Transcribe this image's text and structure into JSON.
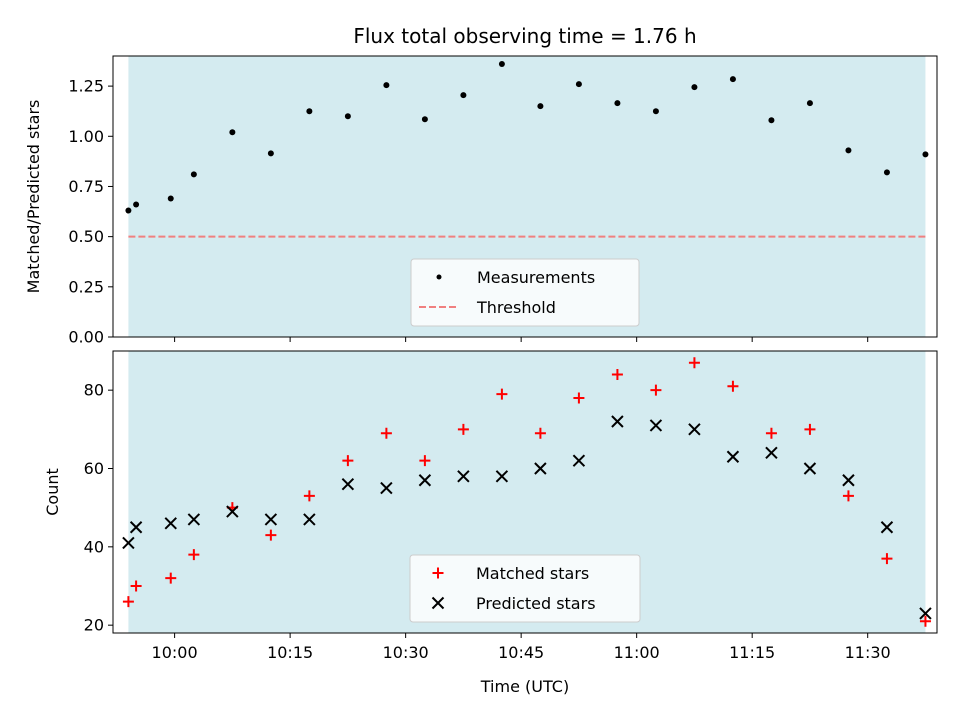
{
  "chart_data": [
    {
      "type": "scatter",
      "title": "Flux total observing time = 1.76 h",
      "xlabel": "",
      "ylabel": "Matched/Predicted stars",
      "xlim": [
        "09:52",
        "11:39"
      ],
      "ylim": [
        0,
        1.4
      ],
      "yticks": [
        0,
        0.25,
        0.5,
        0.75,
        1.0,
        1.25
      ],
      "ytick_labels": [
        "0.00",
        "0.25",
        "0.50",
        "0.75",
        "1.00",
        "1.25"
      ],
      "shaded_span": [
        "09:54",
        "11:37.5"
      ],
      "shaded_color": "#d4ebf0",
      "threshold": {
        "name": "Threshold",
        "value": 0.5,
        "color": "#f08080",
        "style": "dashed"
      },
      "legend": {
        "placement": "lower-center",
        "entries": [
          "Measurements",
          "Threshold"
        ]
      },
      "series": [
        {
          "name": "Measurements",
          "color": "#000000",
          "marker": "dot",
          "x": [
            "09:54",
            "09:55",
            "09:59.5",
            "10:02.5",
            "10:07.5",
            "10:12.5",
            "10:17.5",
            "10:22.5",
            "10:27.5",
            "10:32.5",
            "10:37.5",
            "10:42.5",
            "10:47.5",
            "10:52.5",
            "10:57.5",
            "11:02.5",
            "11:07.5",
            "11:12.5",
            "11:17.5",
            "11:22.5",
            "11:27.5",
            "11:32.5",
            "11:37.5"
          ],
          "y": [
            0.63,
            0.66,
            0.69,
            0.81,
            1.02,
            0.915,
            1.125,
            1.1,
            1.255,
            1.085,
            1.205,
            1.36,
            1.15,
            1.26,
            1.165,
            1.125,
            1.245,
            1.285,
            1.08,
            1.165,
            0.93,
            0.82,
            0.91
          ]
        }
      ]
    },
    {
      "type": "scatter",
      "title": "",
      "xlabel": "Time (UTC)",
      "ylabel": "Count",
      "xlim": [
        "09:52",
        "11:39"
      ],
      "ylim": [
        18,
        90
      ],
      "yticks": [
        20,
        40,
        60,
        80
      ],
      "ytick_labels": [
        "20",
        "40",
        "60",
        "80"
      ],
      "xticks": [
        "10:00",
        "10:15",
        "10:30",
        "10:45",
        "11:00",
        "11:15",
        "11:30"
      ],
      "shaded_span": [
        "09:54",
        "11:37.5"
      ],
      "shaded_color": "#d4ebf0",
      "legend": {
        "placement": "lower-center",
        "entries": [
          "Matched stars",
          "Predicted stars"
        ]
      },
      "series": [
        {
          "name": "Matched stars",
          "color": "#ff0000",
          "marker": "plus",
          "x": [
            "09:54",
            "09:55",
            "09:59.5",
            "10:02.5",
            "10:07.5",
            "10:12.5",
            "10:17.5",
            "10:22.5",
            "10:27.5",
            "10:32.5",
            "10:37.5",
            "10:42.5",
            "10:47.5",
            "10:52.5",
            "10:57.5",
            "11:02.5",
            "11:07.5",
            "11:12.5",
            "11:17.5",
            "11:22.5",
            "11:27.5",
            "11:32.5",
            "11:37.5"
          ],
          "y": [
            26,
            30,
            32,
            38,
            50,
            43,
            53,
            62,
            69,
            62,
            70,
            79,
            69,
            78,
            84,
            80,
            87,
            81,
            69,
            70,
            53,
            37,
            21
          ]
        },
        {
          "name": "Predicted stars",
          "color": "#000000",
          "marker": "x",
          "x": [
            "09:54",
            "09:55",
            "09:59.5",
            "10:02.5",
            "10:07.5",
            "10:12.5",
            "10:17.5",
            "10:22.5",
            "10:27.5",
            "10:32.5",
            "10:37.5",
            "10:42.5",
            "10:47.5",
            "10:52.5",
            "10:57.5",
            "11:02.5",
            "11:07.5",
            "11:12.5",
            "11:17.5",
            "11:22.5",
            "11:27.5",
            "11:32.5",
            "11:37.5"
          ],
          "y": [
            41,
            45,
            46,
            47,
            49,
            47,
            47,
            56,
            55,
            57,
            58,
            58,
            60,
            62,
            72,
            71,
            70,
            63,
            64,
            60,
            57,
            45,
            23
          ]
        }
      ]
    }
  ]
}
